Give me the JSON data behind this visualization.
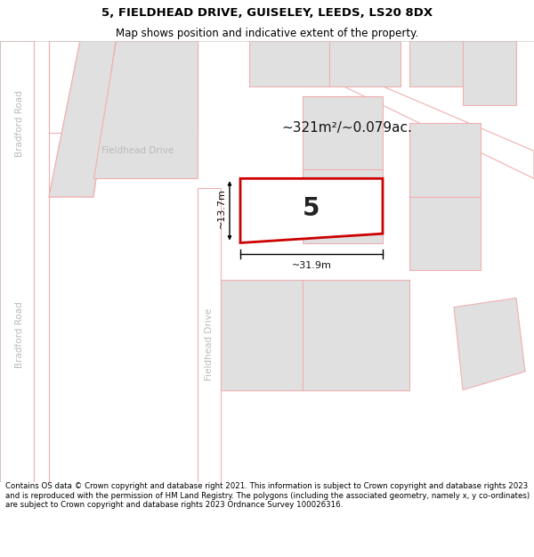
{
  "title_line1": "5, FIELDHEAD DRIVE, GUISELEY, LEEDS, LS20 8DX",
  "title_line2": "Map shows position and indicative extent of the property.",
  "footer_text": "Contains OS data © Crown copyright and database right 2021. This information is subject to Crown copyright and database rights 2023 and is reproduced with the permission of HM Land Registry. The polygons (including the associated geometry, namely x, y co-ordinates) are subject to Crown copyright and database rights 2023 Ordnance Survey 100026316.",
  "map_bg": "#ffffff",
  "road_stroke": "#f0b0b0",
  "plot_fill": "#e0e0e0",
  "plot_stroke": "#f0b0b0",
  "highlight_fill": "#ffffff",
  "highlight_stroke": "#cc0000",
  "area_text": "~321m²/~0.079ac.",
  "plot_number": "5",
  "dim_width": "~31.9m",
  "dim_height": "~13.7m",
  "road_label_bradford1": "Bradford Road",
  "road_label_bradford2": "Bradford Road",
  "road_label_fh1": "Fieldhead Drive",
  "road_label_fh2": "Fieldhead Drive",
  "label_color": "#bbbbbb",
  "title_fontsize": 9.5,
  "subtitle_fontsize": 8.5,
  "footer_fontsize": 6.2
}
